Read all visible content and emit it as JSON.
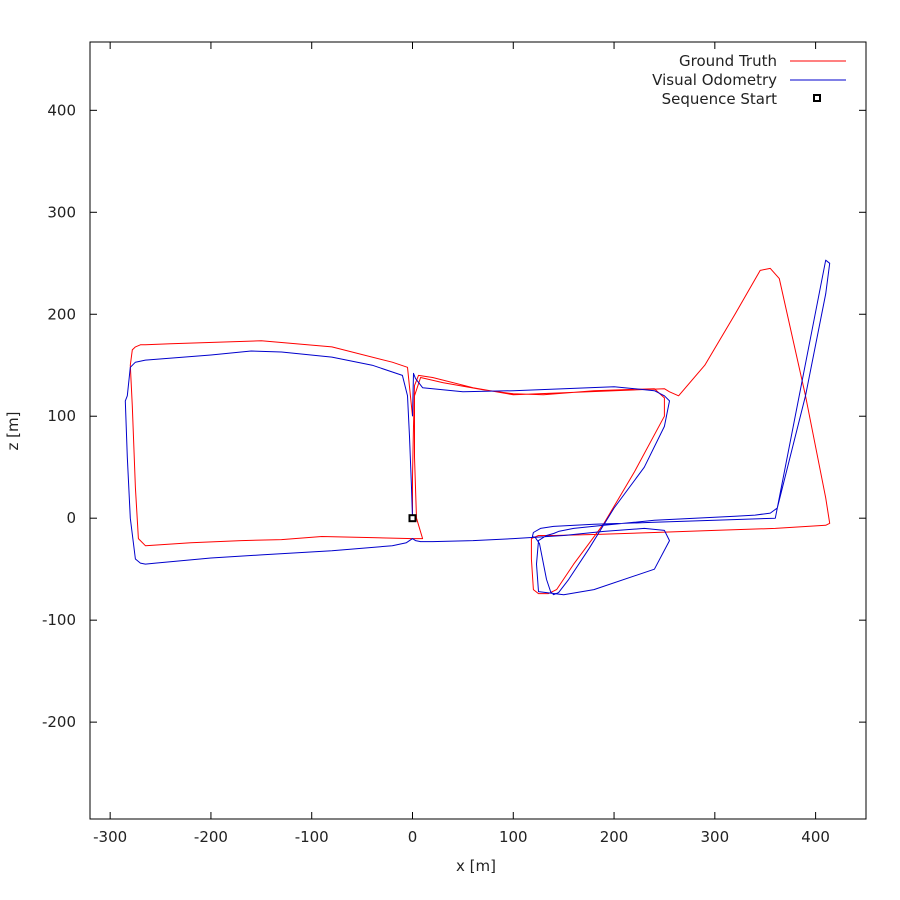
{
  "chart_data": {
    "type": "line",
    "title": "",
    "xlabel": "x [m]",
    "ylabel": "z [m]",
    "xlim": [
      -320,
      450
    ],
    "ylim": [
      -295,
      467
    ],
    "x_ticks": [
      -300,
      -200,
      -100,
      0,
      100,
      200,
      300,
      400
    ],
    "y_ticks": [
      -200,
      -100,
      0,
      100,
      200,
      300,
      400
    ],
    "grid": false,
    "legend_position": "top-right",
    "series": [
      {
        "name": "Ground Truth",
        "color": "#ff0000",
        "x": [
          0,
          0,
          1,
          2,
          6,
          20,
          60,
          100,
          150,
          200,
          250,
          255,
          264,
          290,
          320,
          345,
          355,
          364,
          390,
          410,
          414,
          410,
          360,
          300,
          240,
          180,
          140,
          125,
          118,
          118,
          120,
          125,
          135,
          143,
          160,
          190,
          220,
          250,
          250,
          240,
          180,
          130,
          100,
          70,
          30,
          8,
          2,
          2,
          4,
          10,
          0,
          -40,
          -90,
          -130,
          -170,
          -220,
          -265,
          -272,
          -275,
          -278,
          -280,
          -278,
          -275,
          -270,
          -265,
          -240,
          -150,
          -80,
          -20,
          -5,
          0
        ],
        "y": [
          0,
          40,
          90,
          130,
          140,
          138,
          128,
          121,
          123,
          125,
          127,
          124,
          120,
          150,
          200,
          243,
          245,
          235,
          120,
          20,
          -5,
          -7,
          -10,
          -12,
          -14,
          -16,
          -17,
          -17,
          -20,
          -40,
          -70,
          -74,
          -74,
          -70,
          -45,
          -5,
          45,
          100,
          118,
          127,
          125,
          121,
          122,
          126,
          133,
          138,
          120,
          60,
          0,
          -20,
          -20,
          -19,
          -18,
          -21,
          -22,
          -24,
          -27,
          -20,
          30,
          110,
          150,
          165,
          168,
          170,
          170,
          171,
          174,
          168,
          153,
          148,
          100
        ]
      },
      {
        "name": "Visual Odometry",
        "color": "#0000cc",
        "x": [
          0,
          -1,
          -3,
          -5,
          -10,
          -40,
          -80,
          -130,
          -160,
          -200,
          -265,
          -275,
          -280,
          -283,
          -285,
          -283,
          -280,
          -275,
          -270,
          -265,
          -255,
          -200,
          -150,
          -80,
          -20,
          -6,
          0,
          3,
          8,
          20,
          60,
          100,
          150,
          190,
          230,
          250,
          255,
          240,
          180,
          150,
          125,
          123,
          125,
          133,
          140,
          145,
          160,
          190,
          220,
          240,
          260,
          300,
          320,
          340,
          355,
          362,
          390,
          410,
          414,
          410,
          360,
          300,
          240,
          180,
          140,
          127,
          120,
          119,
          122,
          126,
          133,
          137,
          140,
          145,
          155,
          175,
          200,
          230,
          250,
          255,
          250,
          240,
          200,
          150,
          100,
          50,
          10,
          3,
          1,
          0
        ],
        "y": [
          0,
          30,
          80,
          120,
          140,
          150,
          158,
          163,
          164,
          160,
          155,
          153,
          148,
          120,
          115,
          60,
          0,
          -40,
          -44,
          -45,
          -44,
          -39,
          -36,
          -32,
          -27,
          -24,
          -20,
          -22,
          -23,
          -23,
          -22,
          -20,
          -17,
          -13,
          -10,
          -12,
          -22,
          -50,
          -70,
          -75,
          -72,
          -45,
          -22,
          -17,
          -15,
          -13,
          -10,
          -7,
          -4,
          -2,
          -1,
          1,
          2,
          3,
          5,
          10,
          120,
          220,
          250,
          253,
          0,
          -2,
          -4,
          -6,
          -8,
          -10,
          -14,
          -18,
          -19,
          -25,
          -60,
          -72,
          -75,
          -73,
          -60,
          -30,
          10,
          50,
          90,
          115,
          120,
          125,
          129,
          127,
          125,
          124,
          128,
          137,
          142,
          100
        ]
      },
      {
        "name": "Sequence Start",
        "color": "#000000",
        "marker": "square",
        "x": [
          0
        ],
        "y": [
          0
        ]
      }
    ]
  }
}
